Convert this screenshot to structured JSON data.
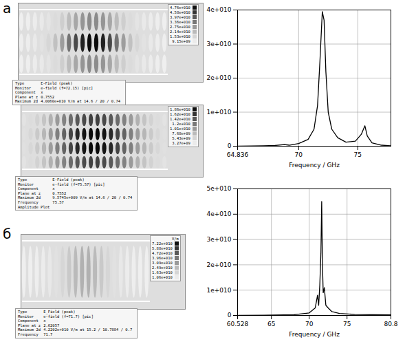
{
  "panels": [
    {
      "letter": "а",
      "field_maps": [
        {
          "info": [
            [
              "Type",
              "E-Field (peak)"
            ],
            [
              "Monitor",
              "e-field (f=72.15) [pic]"
            ],
            [
              "Component",
              "x"
            ],
            [
              "Plane at z",
              "0.7552"
            ],
            [
              "Maximum 2d",
              "4.0060e+010 V/m at 14.6 / 20 / 0.74"
            ]
          ],
          "colorbar": [
            "4.76e+010",
            "4.58e+010",
            "3.97e+010",
            "3.36e+010",
            "2.75e+010",
            "2.14e+010",
            "1.53e+010",
            "9.15e+09"
          ]
        },
        {
          "info": [
            [
              "Type",
              "E-Field (peak)"
            ],
            [
              "Monitor",
              "e-field (f=75.57) [pic]"
            ],
            [
              "Component",
              "x"
            ],
            [
              "Plane at z",
              "0.7552"
            ],
            [
              "Maximum 2d",
              "9.5745e+009 V/m at 14.6 / 20 / 0.74"
            ],
            [
              "Frequency",
              "75.57"
            ],
            [
              "Amplitude Plot",
              ""
            ]
          ],
          "colorbar": [
            "1.86e+010",
            "1.62e+010",
            "1.42e+010",
            "1.2e+010",
            "1.01e+010",
            "7.68e+09",
            "5.43e+09",
            "3.27e+09"
          ]
        }
      ]
    },
    {
      "letter": "б",
      "field_maps": [
        {
          "info": [
            [
              "Type",
              "E_Field (peak)"
            ],
            [
              "Monitor",
              "e-field (f=71.7) [pic]"
            ],
            [
              "Component",
              "x"
            ],
            [
              "Plane at z",
              "2.62057"
            ],
            [
              "Maximum 2d",
              "4.2202e+010 V/m at 15.2 / 10.7884 / 0.7"
            ],
            [
              "Frequency",
              "71.7"
            ]
          ],
          "colorbar_unit": "V/m",
          "colorbar": [
            "7.22e+010",
            "5.88e+010",
            "4.72e+010",
            "3.96e+010",
            "3.09e+010",
            "2.49e+010",
            "1.63e+010",
            "1.06e+010"
          ]
        }
      ]
    }
  ],
  "chart_data": [
    {
      "type": "line",
      "x_label": "Frequency / GHz",
      "color": "#000000",
      "grid": true,
      "x": [
        64.836,
        66,
        67,
        68,
        68.8,
        69.2,
        70,
        70.8,
        71.3,
        71.6,
        71.8,
        72.0,
        72.15,
        72.3,
        72.5,
        72.8,
        73.3,
        74,
        74.8,
        75.3,
        75.6,
        75.8,
        76.2,
        77,
        77.8
      ],
      "values": [
        0,
        50000000.0,
        100000000.0,
        200000000.0,
        500000000.0,
        300000000.0,
        800000000.0,
        2000000000.0,
        5000000000.0,
        12000000000.0,
        25000000000.0,
        39500000000.0,
        37000000000.0,
        22000000000.0,
        10000000000.0,
        5000000000.0,
        2500000000.0,
        1200000000.0,
        1500000000.0,
        3500000000.0,
        6000000000.0,
        3000000000.0,
        1000000000.0,
        300000000.0,
        100000000.0
      ],
      "xlim": [
        64.836,
        77.8
      ],
      "xticks": [
        64.836,
        70,
        75
      ],
      "ylim": [
        0,
        40000000000.0
      ],
      "yticks": [
        0,
        {
          "value": 10000000000.0,
          "label": "1e+010"
        },
        {
          "value": 20000000000.0,
          "label": "2e+010"
        },
        {
          "value": 30000000000.0,
          "label": "3e+010"
        },
        {
          "value": 40000000000.0,
          "label": "4e+010"
        }
      ]
    },
    {
      "type": "line",
      "x_label": "Frequency / GHz",
      "color": "#000000",
      "grid": true,
      "x": [
        60.528,
        64,
        68,
        70,
        70.8,
        71.1,
        71.25,
        71.4,
        71.55,
        71.65,
        71.75,
        71.85,
        72.0,
        72.2,
        72.5,
        73,
        74,
        76,
        80.8
      ],
      "values": [
        0,
        100000000.0,
        300000000.0,
        1000000000.0,
        3000000000.0,
        8000000000.0,
        4000000000.0,
        12000000000.0,
        25000000000.0,
        45000000000.0,
        20000000000.0,
        9000000000.0,
        11000000000.0,
        4000000000.0,
        3000000000.0,
        1500000000.0,
        800000000.0,
        400000000.0,
        200000000.0
      ],
      "xlim": [
        60.528,
        80.8
      ],
      "xticks": [
        60.528,
        65,
        70,
        75,
        80.8
      ],
      "ylim": [
        0,
        50000000000.0
      ],
      "yticks": [
        0,
        {
          "value": 10000000000.0,
          "label": "1e+010"
        },
        {
          "value": 20000000000.0,
          "label": "2e+010"
        },
        {
          "value": 30000000000.0,
          "label": "3e+010"
        },
        {
          "value": 40000000000.0,
          "label": "4e+010"
        },
        {
          "value": 50000000000.0,
          "label": "5e+010"
        }
      ]
    }
  ]
}
